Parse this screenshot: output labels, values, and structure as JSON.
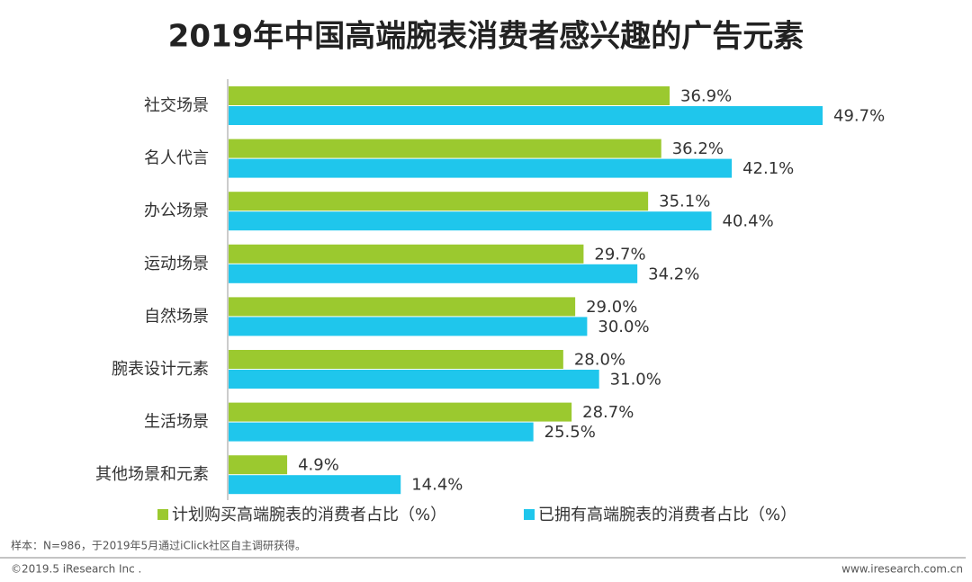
{
  "chart_data": {
    "type": "bar",
    "orientation": "horizontal",
    "title": "2019年中国高端腕表消费者感兴趣的广告元素",
    "categories": [
      "社交场景",
      "名人代言",
      "办公场景",
      "运动场景",
      "自然场景",
      "腕表设计元素",
      "生活场景",
      "其他场景和元素"
    ],
    "series": [
      {
        "name": "计划购买高端腕表的消费者占比（%）",
        "color": "#9bc92f",
        "values": [
          36.9,
          36.2,
          35.1,
          29.7,
          29.0,
          28.0,
          28.7,
          4.9
        ],
        "value_labels": [
          "36.9%",
          "36.2%",
          "35.1%",
          "29.7%",
          "29.0%",
          "28.0%",
          "28.7%",
          "4.9%"
        ]
      },
      {
        "name": "已拥有高端腕表的消费者占比（%）",
        "color": "#1fc6ec",
        "values": [
          49.7,
          42.1,
          40.4,
          34.2,
          30.0,
          31.0,
          25.5,
          14.4
        ],
        "value_labels": [
          "49.7%",
          "42.1%",
          "40.4%",
          "34.2%",
          "30.0%",
          "31.0%",
          "25.5%",
          "14.4%"
        ]
      }
    ],
    "note": "样本：N=986，于2019年5月通过iClick社区自主调研获得。",
    "copyright": "©2019.5 iResearch Inc .",
    "website": "www.iresearch.com.cn"
  }
}
